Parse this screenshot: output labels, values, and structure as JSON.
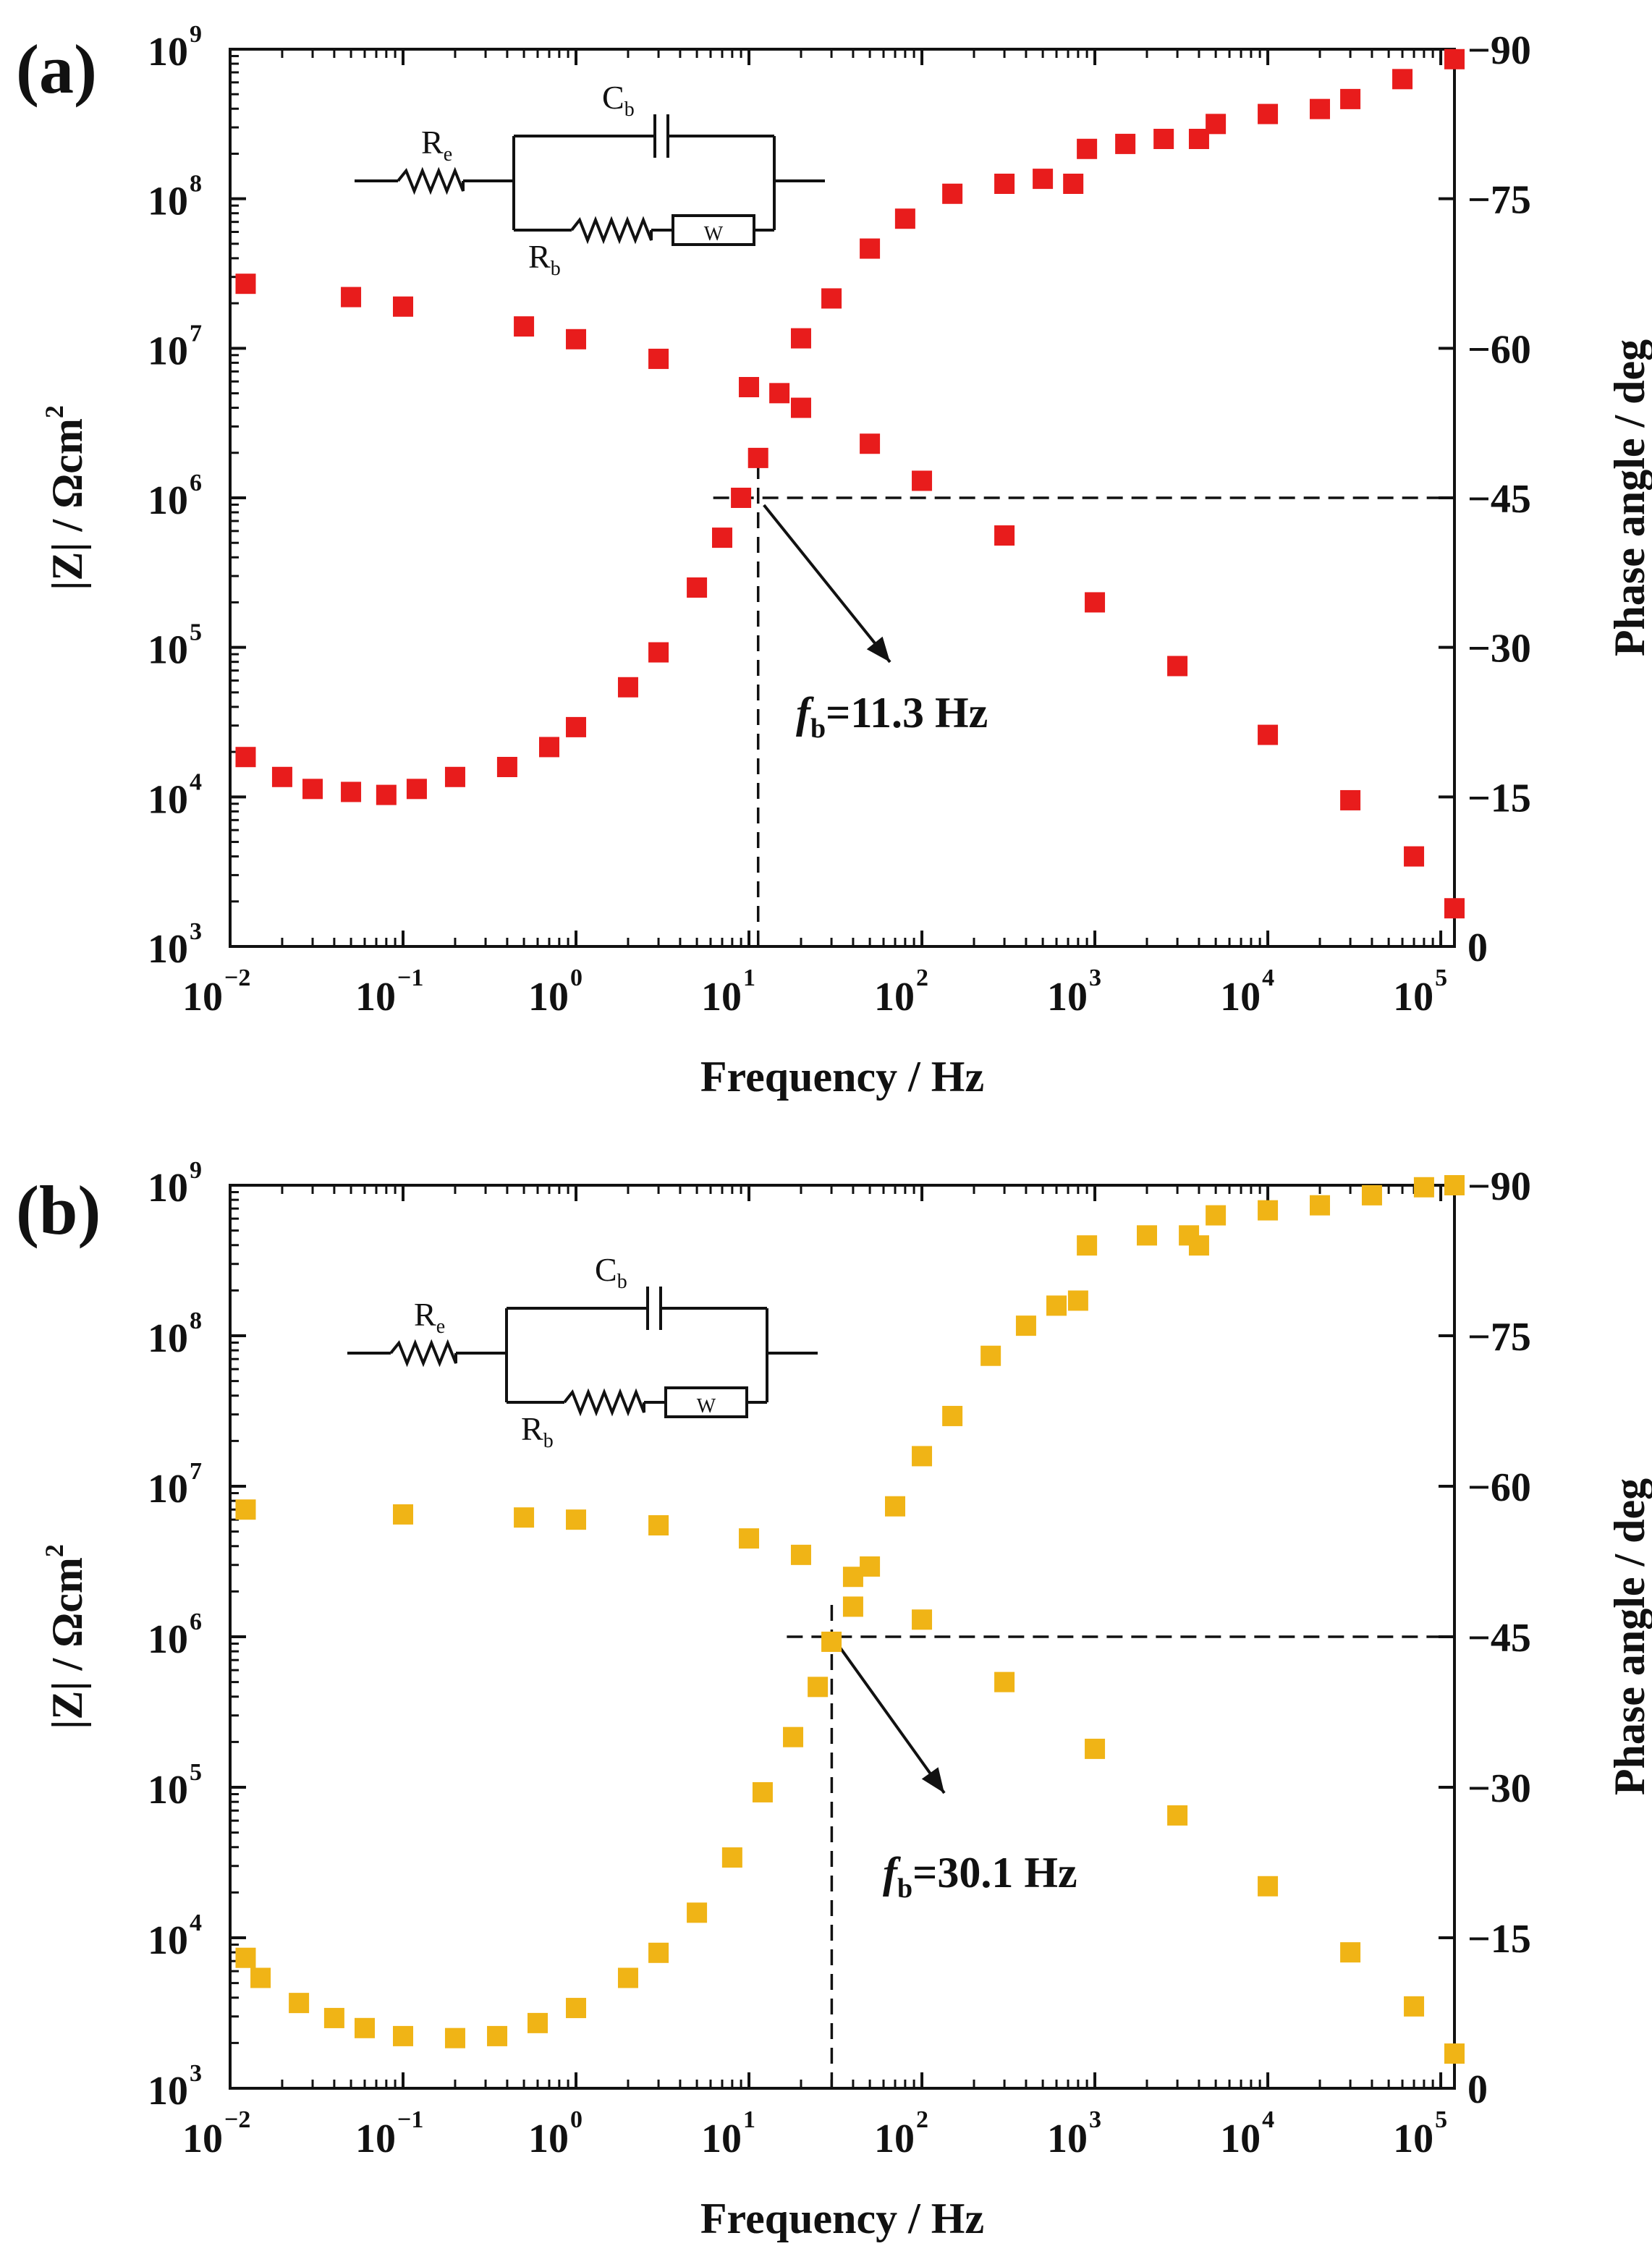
{
  "figure": {
    "colors": {
      "a": "#e81c1c",
      "b": "#f0b416",
      "axis": "#111111"
    }
  },
  "chart_data": [
    {
      "panel": "(a)",
      "type": "scatter",
      "xlabel": "Frequency / Hz",
      "ylabel_left": "|Z| / Ωcm",
      "ylabel_left_sup": "2",
      "ylabel_right": "Phase angle / deg",
      "x_scale": "log",
      "xlim": [
        0.01,
        120000
      ],
      "x_ticks": [
        {
          "base": "10",
          "exp": "−2"
        },
        {
          "base": "10",
          "exp": "−1"
        },
        {
          "base": "10",
          "exp": "0"
        },
        {
          "base": "10",
          "exp": "1"
        },
        {
          "base": "10",
          "exp": "2"
        },
        {
          "base": "10",
          "exp": "3"
        },
        {
          "base": "10",
          "exp": "4"
        },
        {
          "base": "10",
          "exp": "5"
        }
      ],
      "y_left_scale": "log",
      "y_left_lim": [
        1000,
        1000000000
      ],
      "y_left_ticks": [
        {
          "base": "10",
          "exp": "3"
        },
        {
          "base": "10",
          "exp": "4"
        },
        {
          "base": "10",
          "exp": "5"
        },
        {
          "base": "10",
          "exp": "6"
        },
        {
          "base": "10",
          "exp": "7"
        },
        {
          "base": "10",
          "exp": "8"
        },
        {
          "base": "10",
          "exp": "9"
        }
      ],
      "y_right_lim": [
        0,
        -90
      ],
      "y_right_ticks": [
        "0",
        "−15",
        "−30",
        "−45",
        "−60",
        "−75",
        "−90"
      ],
      "circuit": {
        "re": "R",
        "re_sub": "e",
        "cb": "C",
        "cb_sub": "b",
        "rb": "R",
        "rb_sub": "b",
        "w": "W"
      },
      "fb_label": {
        "f": "f",
        "sub": "b",
        "value": "=11.3 Hz"
      },
      "fb_hz": 11.3,
      "ref_phase": -45,
      "series": [
        {
          "name": "|Z|",
          "axis": "left",
          "color": "#e81c1c",
          "points": [
            [
              0.0123,
              27000000
            ],
            [
              0.05,
              22000000
            ],
            [
              0.1,
              19000000
            ],
            [
              0.5,
              14000000
            ],
            [
              1,
              11500000
            ],
            [
              3,
              8500000
            ],
            [
              10,
              5500000
            ],
            [
              20,
              4000000
            ],
            [
              50,
              2300000
            ],
            [
              100,
              1300000
            ],
            [
              300,
              560000
            ],
            [
              1000,
              200000
            ],
            [
              3000,
              75000
            ],
            [
              10000,
              26000
            ],
            [
              30000,
              9500
            ],
            [
              70000,
              4000
            ],
            [
              120000,
              1800
            ]
          ]
        },
        {
          "name": "Phase angle",
          "axis": "right",
          "color": "#e81c1c",
          "points": [
            [
              0.0123,
              -19.0
            ],
            [
              0.02,
              -17.0
            ],
            [
              0.03,
              -15.8
            ],
            [
              0.05,
              -15.5
            ],
            [
              0.08,
              -15.2
            ],
            [
              0.12,
              -15.8
            ],
            [
              0.2,
              -17.0
            ],
            [
              0.4,
              -18.0
            ],
            [
              0.7,
              -20.0
            ],
            [
              1,
              -22.0
            ],
            [
              2,
              -26.0
            ],
            [
              3,
              -29.5
            ],
            [
              5,
              -36.0
            ],
            [
              7,
              -41.0
            ],
            [
              9,
              -45.0
            ],
            [
              11.3,
              -49.0
            ],
            [
              15,
              -55.5
            ],
            [
              20,
              -61.0
            ],
            [
              30,
              -65.0
            ],
            [
              50,
              -70.0
            ],
            [
              80,
              -73.0
            ],
            [
              150,
              -75.5
            ],
            [
              300,
              -76.5
            ],
            [
              500,
              -77.0
            ],
            [
              750,
              -76.5
            ],
            [
              900,
              -80.0
            ],
            [
              1500,
              -80.5
            ],
            [
              2500,
              -81.0
            ],
            [
              4000,
              -81.0
            ],
            [
              5000,
              -82.5
            ],
            [
              10000,
              -83.5
            ],
            [
              20000,
              -84.0
            ],
            [
              30000,
              -85.0
            ],
            [
              60000,
              -87.0
            ],
            [
              120000,
              -89.0
            ]
          ]
        }
      ]
    },
    {
      "panel": "(b)",
      "type": "scatter",
      "xlabel": "Frequency / Hz",
      "ylabel_left": "|Z| / Ωcm",
      "ylabel_left_sup": "2",
      "ylabel_right": "Phase angle / deg",
      "x_scale": "log",
      "xlim": [
        0.01,
        120000
      ],
      "x_ticks": [
        {
          "base": "10",
          "exp": "−2"
        },
        {
          "base": "10",
          "exp": "−1"
        },
        {
          "base": "10",
          "exp": "0"
        },
        {
          "base": "10",
          "exp": "1"
        },
        {
          "base": "10",
          "exp": "2"
        },
        {
          "base": "10",
          "exp": "3"
        },
        {
          "base": "10",
          "exp": "4"
        },
        {
          "base": "10",
          "exp": "5"
        }
      ],
      "y_left_scale": "log",
      "y_left_lim": [
        1000,
        1000000000
      ],
      "y_left_ticks": [
        {
          "base": "10",
          "exp": "3"
        },
        {
          "base": "10",
          "exp": "4"
        },
        {
          "base": "10",
          "exp": "5"
        },
        {
          "base": "10",
          "exp": "6"
        },
        {
          "base": "10",
          "exp": "7"
        },
        {
          "base": "10",
          "exp": "8"
        },
        {
          "base": "10",
          "exp": "9"
        }
      ],
      "y_right_lim": [
        0,
        -90
      ],
      "y_right_ticks": [
        "0",
        "−15",
        "−30",
        "−45",
        "−60",
        "−75",
        "−90"
      ],
      "circuit": {
        "re": "R",
        "re_sub": "e",
        "cb": "C",
        "cb_sub": "b",
        "rb": "R",
        "rb_sub": "b",
        "w": "W"
      },
      "fb_label": {
        "f": "f",
        "sub": "b",
        "value": "=30.1 Hz"
      },
      "fb_hz": 30.1,
      "ref_phase": -45,
      "series": [
        {
          "name": "|Z|",
          "axis": "left",
          "color": "#f0b416",
          "points": [
            [
              0.0123,
              7000000
            ],
            [
              0.1,
              6500000
            ],
            [
              0.5,
              6200000
            ],
            [
              1,
              6000000
            ],
            [
              3,
              5500000
            ],
            [
              10,
              4500000
            ],
            [
              20,
              3500000
            ],
            [
              40,
              2500000
            ],
            [
              100,
              1300000
            ],
            [
              300,
              500000
            ],
            [
              1000,
              180000
            ],
            [
              3000,
              65000
            ],
            [
              10000,
              22000
            ],
            [
              30000,
              8000
            ],
            [
              70000,
              3500
            ],
            [
              120000,
              1700
            ]
          ]
        },
        {
          "name": "Phase angle",
          "axis": "right",
          "color": "#f0b416",
          "points": [
            [
              0.0123,
              -13.0
            ],
            [
              0.015,
              -11.0
            ],
            [
              0.025,
              -8.5
            ],
            [
              0.04,
              -7.0
            ],
            [
              0.06,
              -6.0
            ],
            [
              0.1,
              -5.2
            ],
            [
              0.2,
              -5.0
            ],
            [
              0.35,
              -5.2
            ],
            [
              0.6,
              -6.5
            ],
            [
              1,
              -8.0
            ],
            [
              2,
              -11.0
            ],
            [
              3,
              -13.5
            ],
            [
              5,
              -17.5
            ],
            [
              8,
              -23.0
            ],
            [
              12,
              -29.5
            ],
            [
              18,
              -35.0
            ],
            [
              25,
              -40.0
            ],
            [
              30,
              -44.5
            ],
            [
              40,
              -48.0
            ],
            [
              50,
              -52.0
            ],
            [
              70,
              -58.0
            ],
            [
              100,
              -63.0
            ],
            [
              150,
              -67.0
            ],
            [
              250,
              -73.0
            ],
            [
              400,
              -76.0
            ],
            [
              600,
              -78.0
            ],
            [
              800,
              -78.5
            ],
            [
              900,
              -84.0
            ],
            [
              2000,
              -85.0
            ],
            [
              3500,
              -85.0
            ],
            [
              4000,
              -84.0
            ],
            [
              5000,
              -87.0
            ],
            [
              10000,
              -87.5
            ],
            [
              20000,
              -88.0
            ],
            [
              40000,
              -89.0
            ],
            [
              80000,
              -89.8
            ],
            [
              120000,
              -90.0
            ]
          ]
        }
      ]
    }
  ]
}
